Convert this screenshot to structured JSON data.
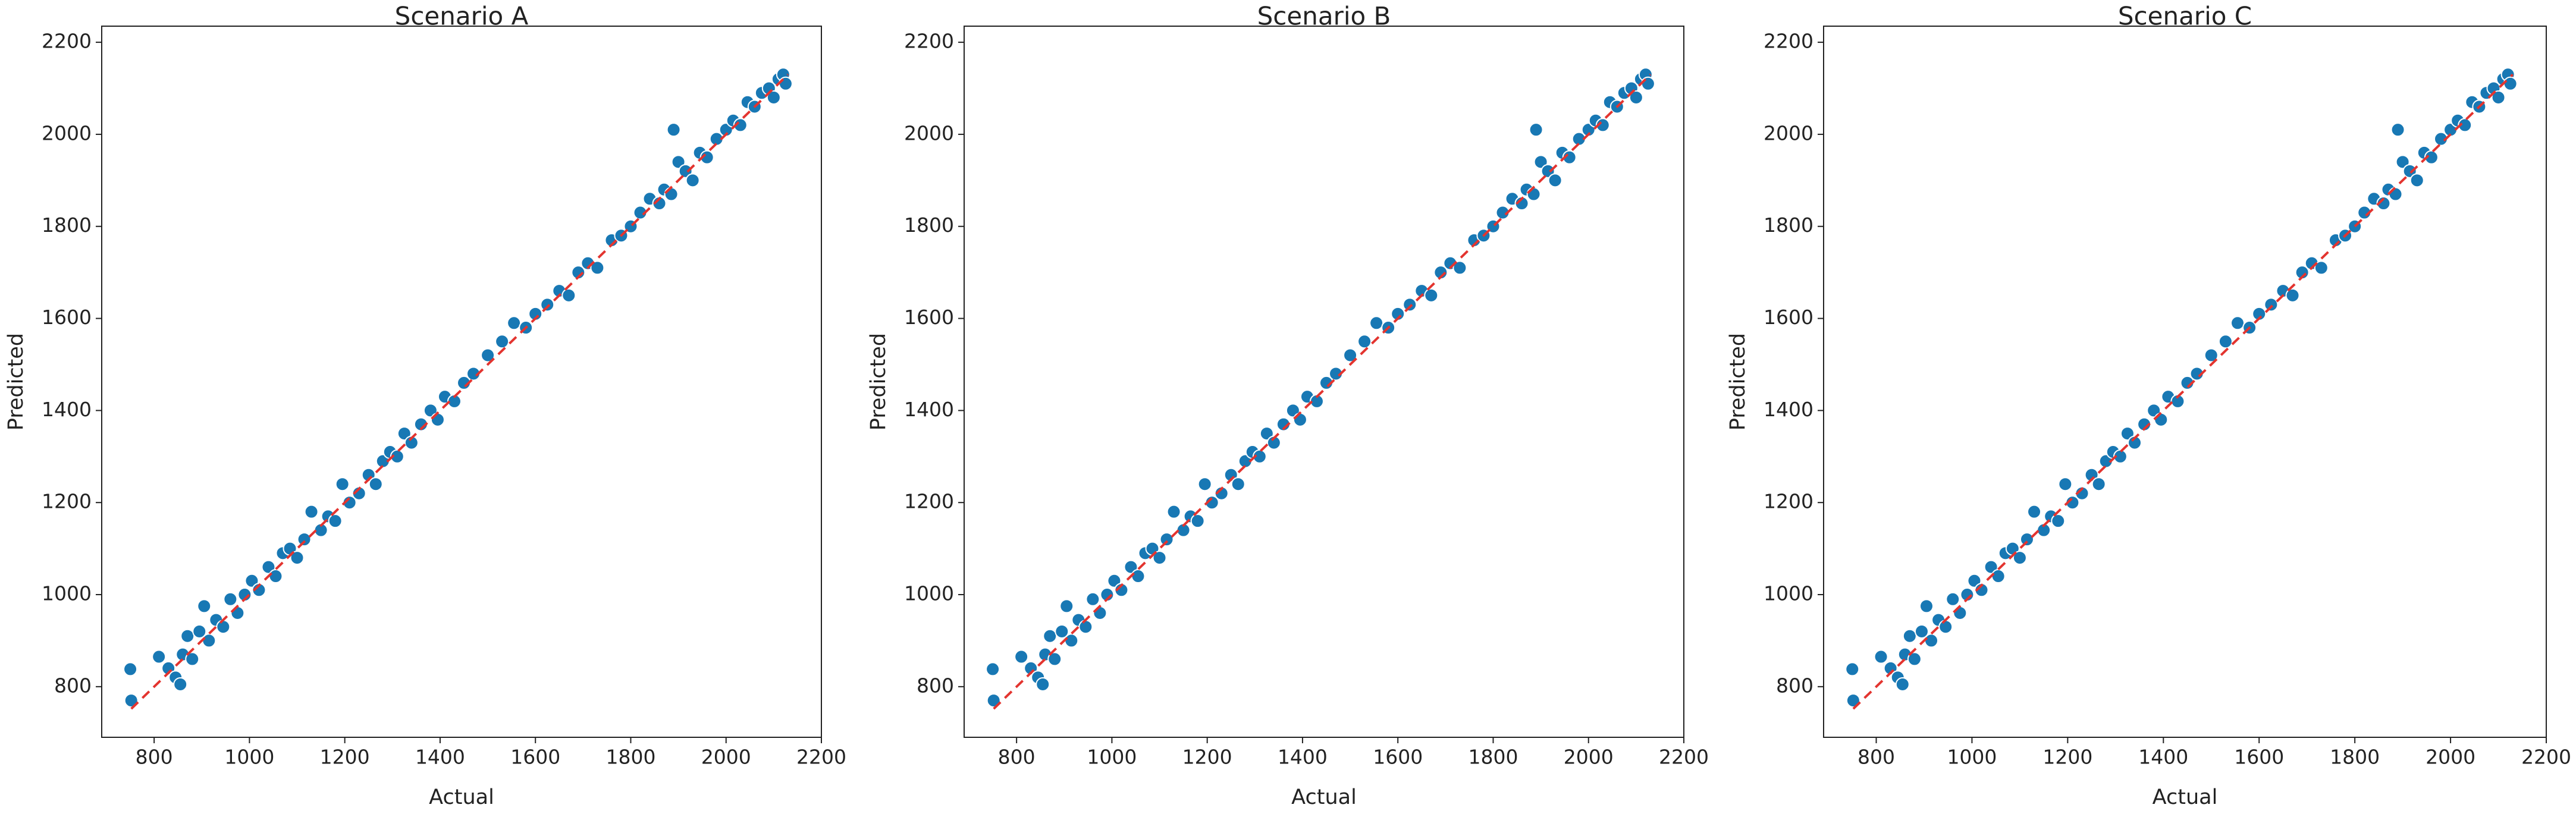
{
  "chart_data": [
    {
      "type": "scatter",
      "title": "Scenario A",
      "x_label": "Actual",
      "y_label": "Predicted",
      "series": [
        {
          "color": "#1878b4",
          "x": [
            752,
            750,
            810,
            830,
            845,
            855,
            860,
            870,
            880,
            895,
            905,
            915,
            930,
            945,
            960,
            975,
            990,
            1005,
            1020,
            1040,
            1055,
            1070,
            1085,
            1100,
            1115,
            1130,
            1150,
            1165,
            1180,
            1195,
            1210,
            1230,
            1250,
            1265,
            1280,
            1295,
            1310,
            1325,
            1340,
            1360,
            1380,
            1395,
            1410,
            1430,
            1450,
            1470,
            1500,
            1530,
            1555,
            1580,
            1600,
            1625,
            1650,
            1670,
            1690,
            1710,
            1730,
            1760,
            1780,
            1800,
            1820,
            1840,
            1860,
            1870,
            1885,
            1890,
            1900,
            1915,
            1930,
            1945,
            1960,
            1980,
            2000,
            2015,
            2030,
            2045,
            2060,
            2075,
            2090,
            2100,
            2110,
            2120,
            2125
          ],
          "values": [
            770,
            838,
            865,
            840,
            820,
            805,
            870,
            910,
            860,
            920,
            975,
            900,
            945,
            930,
            990,
            960,
            1000,
            1030,
            1010,
            1060,
            1040,
            1090,
            1100,
            1080,
            1120,
            1180,
            1140,
            1170,
            1160,
            1240,
            1200,
            1220,
            1260,
            1240,
            1290,
            1310,
            1300,
            1350,
            1330,
            1370,
            1400,
            1380,
            1430,
            1420,
            1460,
            1480,
            1520,
            1550,
            1590,
            1580,
            1610,
            1630,
            1660,
            1650,
            1700,
            1720,
            1710,
            1770,
            1780,
            1800,
            1830,
            1860,
            1850,
            1880,
            1870,
            2010,
            1940,
            1920,
            1900,
            1960,
            1950,
            1990,
            2010,
            2030,
            2020,
            2070,
            2060,
            2090,
            2100,
            2080,
            2120,
            2130,
            2110
          ]
        }
      ],
      "reference_line": {
        "x": [
          752,
          2130
        ],
        "values": [
          752,
          2130
        ],
        "color": "#e3342f"
      },
      "xlim": [
        690,
        2200
      ],
      "ylim": [
        690,
        2235
      ],
      "xticks": [
        800,
        1000,
        1200,
        1400,
        1600,
        1800,
        2000,
        2200
      ],
      "yticks": [
        800,
        1000,
        1200,
        1400,
        1600,
        1800,
        2000,
        2200
      ]
    },
    {
      "type": "scatter",
      "title": "Scenario B",
      "x_label": "Actual",
      "y_label": "Predicted",
      "series": [
        {
          "color": "#1878b4",
          "x": [
            752,
            750,
            810,
            830,
            845,
            855,
            860,
            870,
            880,
            895,
            905,
            915,
            930,
            945,
            960,
            975,
            990,
            1005,
            1020,
            1040,
            1055,
            1070,
            1085,
            1100,
            1115,
            1130,
            1150,
            1165,
            1180,
            1195,
            1210,
            1230,
            1250,
            1265,
            1280,
            1295,
            1310,
            1325,
            1340,
            1360,
            1380,
            1395,
            1410,
            1430,
            1450,
            1470,
            1500,
            1530,
            1555,
            1580,
            1600,
            1625,
            1650,
            1670,
            1690,
            1710,
            1730,
            1760,
            1780,
            1800,
            1820,
            1840,
            1860,
            1870,
            1885,
            1890,
            1900,
            1915,
            1930,
            1945,
            1960,
            1980,
            2000,
            2015,
            2030,
            2045,
            2060,
            2075,
            2090,
            2100,
            2110,
            2120,
            2125
          ],
          "values": [
            770,
            838,
            865,
            840,
            820,
            805,
            870,
            910,
            860,
            920,
            975,
            900,
            945,
            930,
            990,
            960,
            1000,
            1030,
            1010,
            1060,
            1040,
            1090,
            1100,
            1080,
            1120,
            1180,
            1140,
            1170,
            1160,
            1240,
            1200,
            1220,
            1260,
            1240,
            1290,
            1310,
            1300,
            1350,
            1330,
            1370,
            1400,
            1380,
            1430,
            1420,
            1460,
            1480,
            1520,
            1550,
            1590,
            1580,
            1610,
            1630,
            1660,
            1650,
            1700,
            1720,
            1710,
            1770,
            1780,
            1800,
            1830,
            1860,
            1850,
            1880,
            1870,
            2010,
            1940,
            1920,
            1900,
            1960,
            1950,
            1990,
            2010,
            2030,
            2020,
            2070,
            2060,
            2090,
            2100,
            2080,
            2120,
            2130,
            2110
          ]
        }
      ],
      "reference_line": {
        "x": [
          752,
          2130
        ],
        "values": [
          752,
          2130
        ],
        "color": "#e3342f"
      },
      "xlim": [
        690,
        2200
      ],
      "ylim": [
        690,
        2235
      ],
      "xticks": [
        800,
        1000,
        1200,
        1400,
        1600,
        1800,
        2000,
        2200
      ],
      "yticks": [
        800,
        1000,
        1200,
        1400,
        1600,
        1800,
        2000,
        2200
      ]
    },
    {
      "type": "scatter",
      "title": "Scenario C",
      "x_label": "Actual",
      "y_label": "Predicted",
      "series": [
        {
          "color": "#1878b4",
          "x": [
            752,
            750,
            810,
            830,
            845,
            855,
            860,
            870,
            880,
            895,
            905,
            915,
            930,
            945,
            960,
            975,
            990,
            1005,
            1020,
            1040,
            1055,
            1070,
            1085,
            1100,
            1115,
            1130,
            1150,
            1165,
            1180,
            1195,
            1210,
            1230,
            1250,
            1265,
            1280,
            1295,
            1310,
            1325,
            1340,
            1360,
            1380,
            1395,
            1410,
            1430,
            1450,
            1470,
            1500,
            1530,
            1555,
            1580,
            1600,
            1625,
            1650,
            1670,
            1690,
            1710,
            1730,
            1760,
            1780,
            1800,
            1820,
            1840,
            1860,
            1870,
            1885,
            1890,
            1900,
            1915,
            1930,
            1945,
            1960,
            1980,
            2000,
            2015,
            2030,
            2045,
            2060,
            2075,
            2090,
            2100,
            2110,
            2120,
            2125
          ],
          "values": [
            770,
            838,
            865,
            840,
            820,
            805,
            870,
            910,
            860,
            920,
            975,
            900,
            945,
            930,
            990,
            960,
            1000,
            1030,
            1010,
            1060,
            1040,
            1090,
            1100,
            1080,
            1120,
            1180,
            1140,
            1170,
            1160,
            1240,
            1200,
            1220,
            1260,
            1240,
            1290,
            1310,
            1300,
            1350,
            1330,
            1370,
            1400,
            1380,
            1430,
            1420,
            1460,
            1480,
            1520,
            1550,
            1590,
            1580,
            1610,
            1630,
            1660,
            1650,
            1700,
            1720,
            1710,
            1770,
            1780,
            1800,
            1830,
            1860,
            1850,
            1880,
            1870,
            2010,
            1940,
            1920,
            1900,
            1960,
            1950,
            1990,
            2010,
            2030,
            2020,
            2070,
            2060,
            2090,
            2100,
            2080,
            2120,
            2130,
            2110
          ]
        }
      ],
      "reference_line": {
        "x": [
          752,
          2130
        ],
        "values": [
          752,
          2130
        ],
        "color": "#e3342f"
      },
      "xlim": [
        690,
        2200
      ],
      "ylim": [
        690,
        2235
      ],
      "xticks": [
        800,
        1000,
        1200,
        1400,
        1600,
        1800,
        2000,
        2200
      ],
      "yticks": [
        800,
        1000,
        1200,
        1400,
        1600,
        1800,
        2000,
        2200
      ]
    }
  ]
}
